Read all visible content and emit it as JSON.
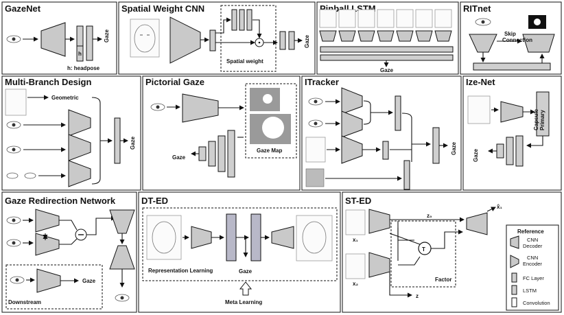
{
  "panels": {
    "gazenet": {
      "title": "GazeNet",
      "label_h": "h",
      "label_headpose": "h: headpose",
      "label_gaze": "Gaze"
    },
    "spatial": {
      "title": "Spatial Weight CNN",
      "label_weight": "Spatial weight",
      "label_gaze": "Gaze"
    },
    "pinball": {
      "title": "Pinball LSTM",
      "label_gaze": "Gaze"
    },
    "ritnet": {
      "title": "RITnet",
      "label_skip": "Skip\nConnection"
    },
    "multibranch": {
      "title": "Multi-Branch Design",
      "label_geometric": "Geometric",
      "label_gaze": "Gaze"
    },
    "pictorial": {
      "title": "Pictorial Gaze",
      "label_gaze": "Gaze",
      "label_map": "Gaze Map"
    },
    "itracker": {
      "title": "ITracker",
      "label_gaze": "Gaze"
    },
    "izenet": {
      "title": "Ize-Net",
      "label_capsule": "Primary\nCapsule",
      "label_gaze": "Gaze"
    },
    "redirection": {
      "title": "Gaze Redirection Network",
      "label_gaze": "Gaze",
      "label_downstream": "Downstream"
    },
    "dted": {
      "title": "DT-ED",
      "label_repr": "Representation Learning",
      "label_gaze": "Gaze",
      "label_meta": "Meta Learning"
    },
    "sted": {
      "title": "ST-ED",
      "label_x1": "x₁",
      "label_x2": "x₂",
      "label_z0": "z₀",
      "label_factor": "Factor",
      "label_T": "T",
      "label_xhat": "x̂₁"
    },
    "reference": {
      "title": "Reference",
      "cnn_decoder": "CNN\nDecoder",
      "cnn_encoder": "CNN\nEncoder",
      "fc_layer": "FC Layer",
      "lstm": "LSTM",
      "convolution": "Convolution"
    }
  },
  "colors": {
    "block_fill": "#c9c9c9",
    "stroke": "#111111",
    "panel_border": "#222222",
    "map_fill": "#9a9a9a"
  }
}
